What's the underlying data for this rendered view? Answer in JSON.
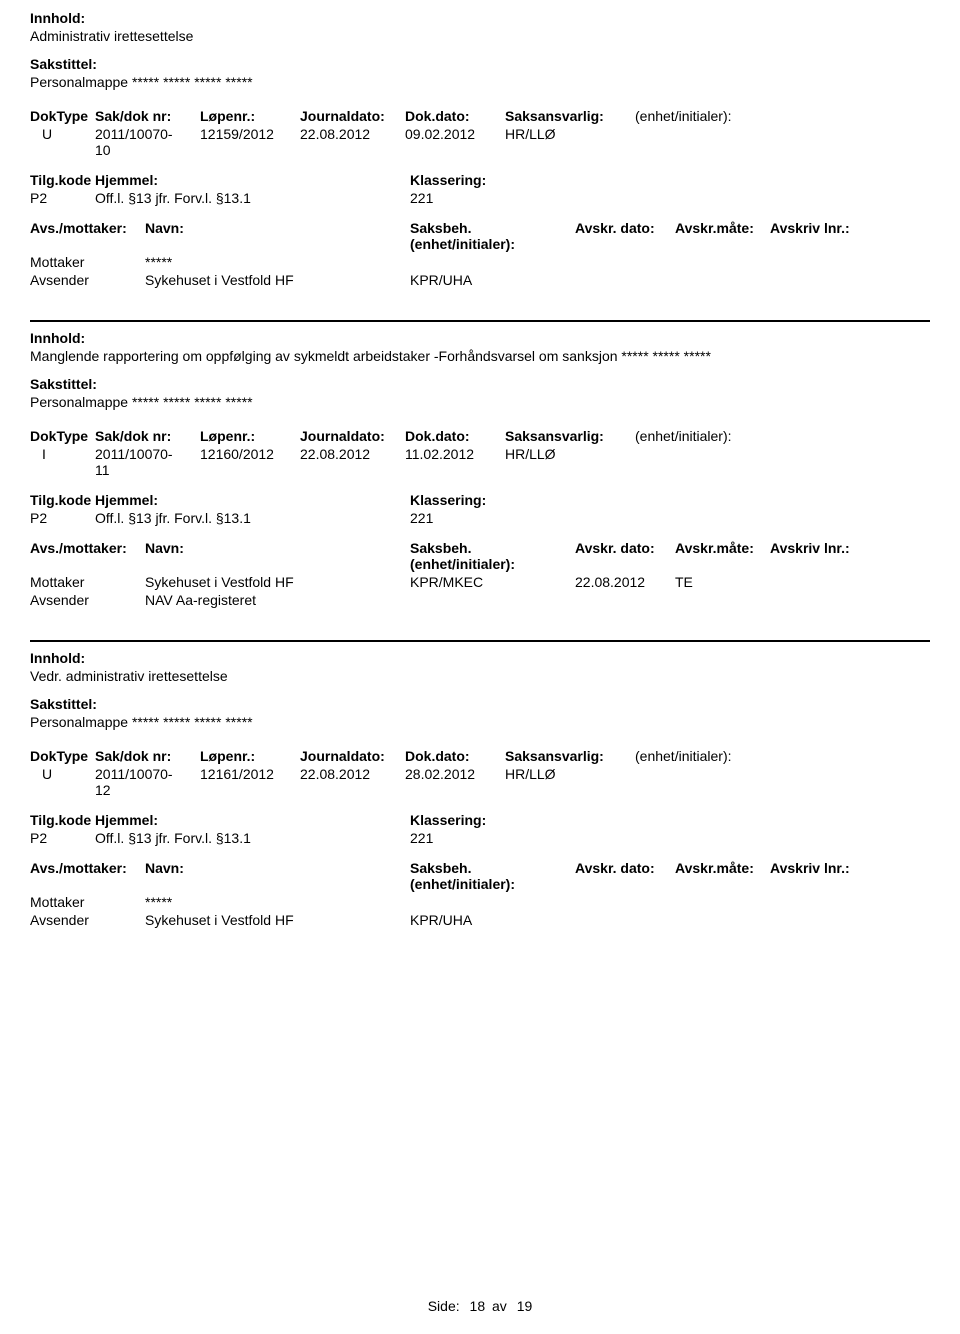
{
  "labels": {
    "innhold": "Innhold:",
    "sakstittel": "Sakstittel:",
    "doktype": "DokType",
    "sakdok": "Sak/dok nr:",
    "lopenr": "Løpenr.:",
    "journaldato": "Journaldato:",
    "dokdato": "Dok.dato:",
    "saksansvarlig": "Saksansvarlig:",
    "enhet": "(enhet/initialer):",
    "tilgkode": "Tilg.kode",
    "hjemmel": "Hjemmel:",
    "klassering": "Klassering:",
    "avsmottaker": "Avs./mottaker:",
    "navn": "Navn:",
    "saksbeh": "Saksbeh.(enhet/initialer):",
    "avskrdato": "Avskr. dato:",
    "avskrmate": "Avskr.måte:",
    "avskrivlnr": "Avskriv lnr.:",
    "mottaker": "Mottaker",
    "avsender": "Avsender"
  },
  "records": [
    {
      "innhold": "Administrativ irettesettelse",
      "sakstittel": "Personalmappe ***** ***** ***** *****",
      "doktype": "U",
      "sakdok1": "2011/10070-",
      "sakdok2": "10",
      "lopenr": "12159/2012",
      "journaldato": "22.08.2012",
      "dokdato": "09.02.2012",
      "saksansvarlig": "HR/LLØ",
      "tilgkode": "P2",
      "hjemmel": "Off.l. §13 jfr. Forv.l. §13.1",
      "klassering": "221",
      "parties": [
        {
          "role": "Mottaker",
          "navn": "*****",
          "saksbeh": "",
          "avskrdato": "",
          "avskrmate": ""
        },
        {
          "role": "Avsender",
          "navn": "Sykehuset i Vestfold HF",
          "saksbeh": "KPR/UHA",
          "avskrdato": "",
          "avskrmate": ""
        }
      ]
    },
    {
      "innhold": "Manglende rapportering om oppfølging av sykmeldt arbeidstaker -Forhåndsvarsel om sanksjon ***** ***** *****",
      "sakstittel": "Personalmappe ***** ***** ***** *****",
      "doktype": "I",
      "sakdok1": "2011/10070-",
      "sakdok2": "11",
      "lopenr": "12160/2012",
      "journaldato": "22.08.2012",
      "dokdato": "11.02.2012",
      "saksansvarlig": "HR/LLØ",
      "tilgkode": "P2",
      "hjemmel": "Off.l. §13 jfr. Forv.l. §13.1",
      "klassering": "221",
      "parties": [
        {
          "role": "Mottaker",
          "navn": "Sykehuset i Vestfold HF",
          "saksbeh": "KPR/MKEC",
          "avskrdato": "22.08.2012",
          "avskrmate": "TE"
        },
        {
          "role": "Avsender",
          "navn": "NAV Aa-registeret",
          "saksbeh": "",
          "avskrdato": "",
          "avskrmate": ""
        }
      ]
    },
    {
      "innhold": "Vedr. administrativ irettesettelse",
      "sakstittel": "Personalmappe ***** ***** ***** *****",
      "doktype": "U",
      "sakdok1": "2011/10070-",
      "sakdok2": "12",
      "lopenr": "12161/2012",
      "journaldato": "22.08.2012",
      "dokdato": "28.02.2012",
      "saksansvarlig": "HR/LLØ",
      "tilgkode": "P2",
      "hjemmel": "Off.l. §13 jfr. Forv.l. §13.1",
      "klassering": "221",
      "parties": [
        {
          "role": "Mottaker",
          "navn": "*****",
          "saksbeh": "",
          "avskrdato": "",
          "avskrmate": ""
        },
        {
          "role": "Avsender",
          "navn": "Sykehuset i Vestfold HF",
          "saksbeh": "KPR/UHA",
          "avskrdato": "",
          "avskrmate": ""
        }
      ]
    }
  ],
  "footer": {
    "side_label": "Side:",
    "page": "18",
    "av": "av",
    "total": "19"
  }
}
